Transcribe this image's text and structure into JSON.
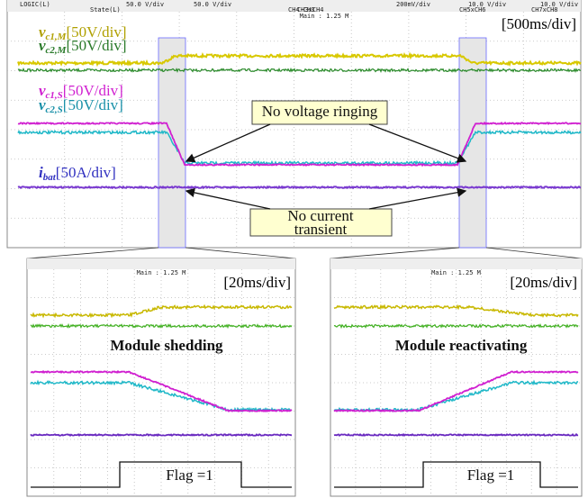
{
  "overview": {
    "header": [
      "LOGIC(L)",
      "State(L)",
      "50.0 V/div",
      "50.0 V/div",
      "200mV/div",
      "CH4-CH3",
      "CH3xCH4",
      "CH5xCH6",
      "CH7xCH8",
      "10.0 V/div",
      "10.0 V/div"
    ],
    "main": "Main : 1.25 M",
    "scale": "[500ms/div]",
    "labels": [
      {
        "symbol": "v",
        "subscript": "c1,M",
        "unit": "[50V/div]"
      },
      {
        "symbol": "v",
        "subscript": "c2,M",
        "unit": "[50V/div]"
      },
      {
        "symbol": "v",
        "subscript": "c1,S",
        "unit": "[50V/div]"
      },
      {
        "symbol": "v",
        "subscript": "c2,S",
        "unit": "[50V/div]"
      },
      {
        "symbol": "i",
        "subscript": "bat",
        "unit": "[50A/div]"
      }
    ],
    "voltage_note": "No voltage ringing",
    "current_note": [
      "No current",
      "transient"
    ]
  },
  "insets": [
    {
      "main": "Main : 1.25 M",
      "scale": "[20ms/div]",
      "title": "Module shedding",
      "flag": "Flag =1"
    },
    {
      "main": "Main : 1.25 M",
      "scale": "[20ms/div]",
      "title": "Module reactivating",
      "flag": "Flag =1"
    }
  ]
}
